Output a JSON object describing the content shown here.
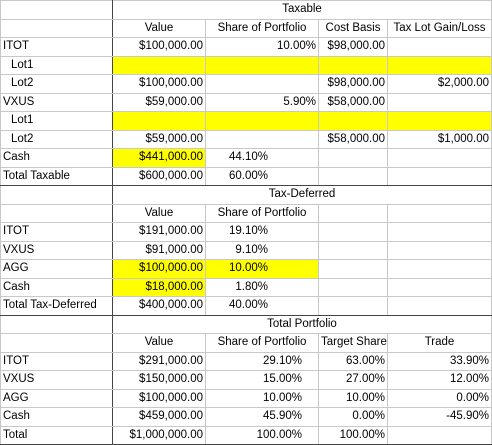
{
  "sections": [
    {
      "title": "Taxable",
      "header": [
        null,
        "Value",
        "Share of Portfolio",
        "Cost Basis",
        "Tax Lot Gain/Loss"
      ],
      "rows": [
        [
          "ITOT",
          "$100,000.00",
          "10.00%",
          "$98,000.00",
          null
        ],
        [
          "Lot1",
          null,
          null,
          null,
          null
        ],
        [
          "Lot2",
          "$100,000.00",
          null,
          "$98,000.00",
          "$2,000.00"
        ],
        [
          "VXUS",
          "$59,000.00",
          "5.90%",
          "$58,000.00",
          null
        ],
        [
          "Lot1",
          null,
          null,
          null,
          null
        ],
        [
          "Lot2",
          "$59,000.00",
          null,
          "$58,000.00",
          "$1,000.00"
        ],
        [
          "Cash",
          "$441,000.00",
          "44.10%",
          null,
          null
        ],
        [
          "Total Taxable",
          "$600,000.00",
          "60.00%",
          null,
          null
        ]
      ]
    },
    {
      "title": "Tax-Deferred",
      "header": [
        null,
        "Value",
        "Share of Portfolio",
        null,
        null
      ],
      "rows": [
        [
          "ITOT",
          "$191,000.00",
          "19.10%",
          null,
          null
        ],
        [
          "VXUS",
          "$91,000.00",
          "9.10%",
          null,
          null
        ],
        [
          "AGG",
          "$100,000.00",
          "10.00%",
          null,
          null
        ],
        [
          "Cash",
          "$18,000.00",
          "1.80%",
          null,
          null
        ],
        [
          "Total Tax-Deferred",
          "$400,000.00",
          "40.00%",
          null,
          null
        ]
      ]
    },
    {
      "title": "Total Portfolio",
      "header": [
        null,
        "Value",
        "Share of Portfolio",
        "Target Share",
        "Trade"
      ],
      "rows": [
        [
          "ITOT",
          "$291,000.00",
          "29.10%",
          "63.00%",
          "33.90%"
        ],
        [
          "VXUS",
          "$150,000.00",
          "15.00%",
          "27.00%",
          "12.00%"
        ],
        [
          "AGG",
          "$100,000.00",
          "10.00%",
          "10.00%",
          "0.00%"
        ],
        [
          "Cash",
          "$459,000.00",
          "45.90%",
          "0.00%",
          "-45.90%"
        ],
        [
          "Total",
          "$1,000,000.00",
          "100.00%",
          "100.00%",
          null
        ]
      ]
    }
  ]
}
